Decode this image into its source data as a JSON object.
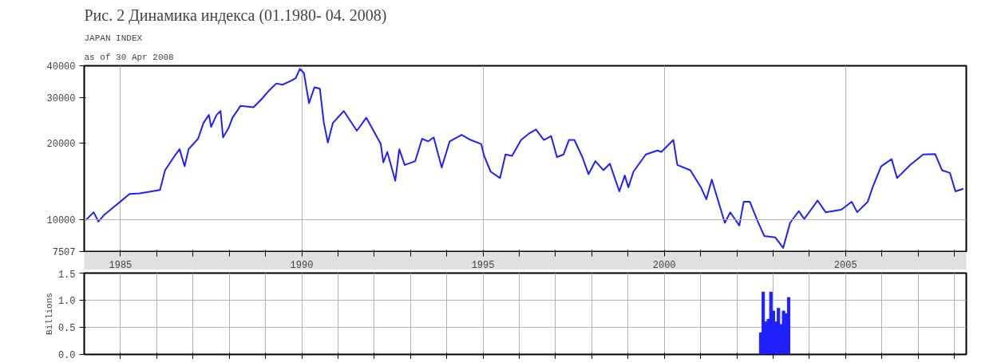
{
  "chart_data": [
    {
      "type": "line",
      "title": "Рис. 2 Динамика индекса (01.1980- 04. 2008)",
      "subtitle": "JAPAN INDEX",
      "annotations": [
        "as of 30 Apr 2008"
      ],
      "x": [
        1984.04,
        1984.26,
        1984.39,
        1984.55,
        1984.99,
        1985.25,
        1985.53,
        1985.86,
        1986.09,
        1986.23,
        1986.52,
        1986.63,
        1986.77,
        1986.88,
        1987.14,
        1987.29,
        1987.44,
        1987.5,
        1987.65,
        1987.76,
        1987.83,
        1987.98,
        1988.09,
        1988.31,
        1988.67,
        1988.89,
        1989.11,
        1989.3,
        1989.47,
        1989.7,
        1989.83,
        1989.95,
        1990.06,
        1990.2,
        1990.35,
        1990.5,
        1990.61,
        1990.72,
        1990.86,
        1991.16,
        1991.52,
        1991.78,
        1992.18,
        1992.25,
        1992.36,
        1992.58,
        1992.69,
        1992.84,
        1993.13,
        1993.32,
        1993.49,
        1993.64,
        1993.86,
        1994.08,
        1994.41,
        1994.66,
        1994.95,
        1995.03,
        1995.21,
        1995.47,
        1995.62,
        1995.8,
        1996.05,
        1996.27,
        1996.46,
        1996.68,
        1996.88,
        1997.04,
        1997.22,
        1997.37,
        1997.52,
        1997.74,
        1997.91,
        1998.1,
        1998.32,
        1998.5,
        1998.76,
        1998.91,
        1999.01,
        1999.15,
        1999.49,
        1999.81,
        1999.92,
        2000.25,
        2000.36,
        2000.72,
        2001.01,
        2001.16,
        2001.31,
        2001.67,
        2001.82,
        2002.07,
        2002.19,
        2002.36,
        2002.58,
        2002.76,
        2003.06,
        2003.28,
        2003.47,
        2003.71,
        2003.86,
        2004.23,
        2004.45,
        2004.88,
        2005.17,
        2005.32,
        2005.61,
        2005.76,
        2005.98,
        2006.27,
        2006.42,
        2006.78,
        2007.14,
        2007.47,
        2007.66,
        2007.88,
        2008.03,
        2008.25
      ],
      "series": [
        {
          "color": "#2020ff",
          "values": [
            9950,
            10700,
            9840,
            10440,
            11750,
            12620,
            12670,
            12910,
            13070,
            15620,
            17990,
            18870,
            16180,
            18870,
            20740,
            23920,
            25700,
            23070,
            25700,
            26610,
            20990,
            22800,
            25070,
            27870,
            27540,
            29580,
            32140,
            34120,
            33730,
            34910,
            35730,
            38900,
            37500,
            28570,
            32960,
            32550,
            23920,
            20040,
            23920,
            26610,
            22280,
            25070,
            19780,
            16760,
            18420,
            14190,
            18870,
            16370,
            16950,
            20740,
            20250,
            20990,
            16000,
            20250,
            21480,
            20510,
            19780,
            17780,
            15420,
            14550,
            17990,
            17780,
            20510,
            21730,
            22540,
            20510,
            21240,
            17580,
            17990,
            20510,
            20510,
            17580,
            15070,
            16950,
            15620,
            16560,
            12910,
            14890,
            13390,
            15420,
            17990,
            18650,
            18420,
            20510,
            16370,
            15620,
            13390,
            12020,
            14360,
            9720,
            10690,
            9490,
            11750,
            11750,
            9840,
            8630,
            8530,
            7760,
            9720,
            10810,
            10070,
            11890,
            10700,
            10940,
            11750,
            10700,
            11750,
            13550,
            16180,
            17250,
            14550,
            16370,
            17990,
            18070,
            15620,
            15240,
            12910,
            13220
          ]
        }
      ],
      "log": true,
      "xlim": [
        1984.0,
        2008.33
      ],
      "ylim": [
        7507,
        40000
      ],
      "xticks": [
        {
          "value": 1985,
          "label": "1985"
        },
        {
          "value": 1986,
          "label": null
        },
        {
          "value": 1987,
          "label": null
        },
        {
          "value": 1988,
          "label": null
        },
        {
          "value": 1989,
          "label": null
        },
        {
          "value": 1990,
          "label": "1990"
        },
        {
          "value": 1991,
          "label": null
        },
        {
          "value": 1992,
          "label": null
        },
        {
          "value": 1993,
          "label": null
        },
        {
          "value": 1994,
          "label": null
        },
        {
          "value": 1995,
          "label": "1995"
        },
        {
          "value": 1996,
          "label": null
        },
        {
          "value": 1997,
          "label": null
        },
        {
          "value": 1998,
          "label": null
        },
        {
          "value": 1999,
          "label": null
        },
        {
          "value": 2000,
          "label": "2000"
        },
        {
          "value": 2001,
          "label": null
        },
        {
          "value": 2002,
          "label": null
        },
        {
          "value": 2003,
          "label": null
        },
        {
          "value": 2004,
          "label": null
        },
        {
          "value": 2005,
          "label": "2005"
        },
        {
          "value": 2006,
          "label": null
        },
        {
          "value": 2007,
          "label": null
        },
        {
          "value": 2008,
          "label": null
        }
      ],
      "yticks": [
        7507,
        10000,
        20000,
        30000,
        40000
      ],
      "grid": "x",
      "ref_lines": [
        {
          "axis": "y",
          "value": 10000,
          "color": "#b4b4b4"
        }
      ],
      "line_style": "solid"
    },
    {
      "type": "bar",
      "ylabel": "Billions",
      "tick_labels": "y",
      "x": [
        2002.66,
        2002.73,
        2002.8,
        2002.87,
        2002.94,
        2003.01,
        2003.08,
        2003.15,
        2003.22,
        2003.29,
        2003.36,
        2003.43
      ],
      "values": [
        0.4,
        1.15,
        0.6,
        0.65,
        1.15,
        0.8,
        0.6,
        0.85,
        0.55,
        0.8,
        0.75,
        1.05
      ],
      "color": "#2020ff",
      "xlim": [
        1984.0,
        2008.33
      ],
      "ylim": [
        0,
        1.5
      ],
      "xticks": [
        1985,
        1986,
        1987,
        1988,
        1989,
        1990,
        1991,
        1992,
        1993,
        1994,
        1995,
        1996,
        1997,
        1998,
        1999,
        2000,
        2001,
        2002,
        2003,
        2004,
        2005,
        2006,
        2007,
        2008
      ],
      "yticks": [
        {
          "value": 0,
          "label": "0.0"
        },
        {
          "value": 0.5,
          "label": "0.5"
        },
        {
          "value": 1,
          "label": "1.0"
        },
        {
          "value": 1.5,
          "label": "1.5"
        }
      ],
      "grid": true
    }
  ]
}
